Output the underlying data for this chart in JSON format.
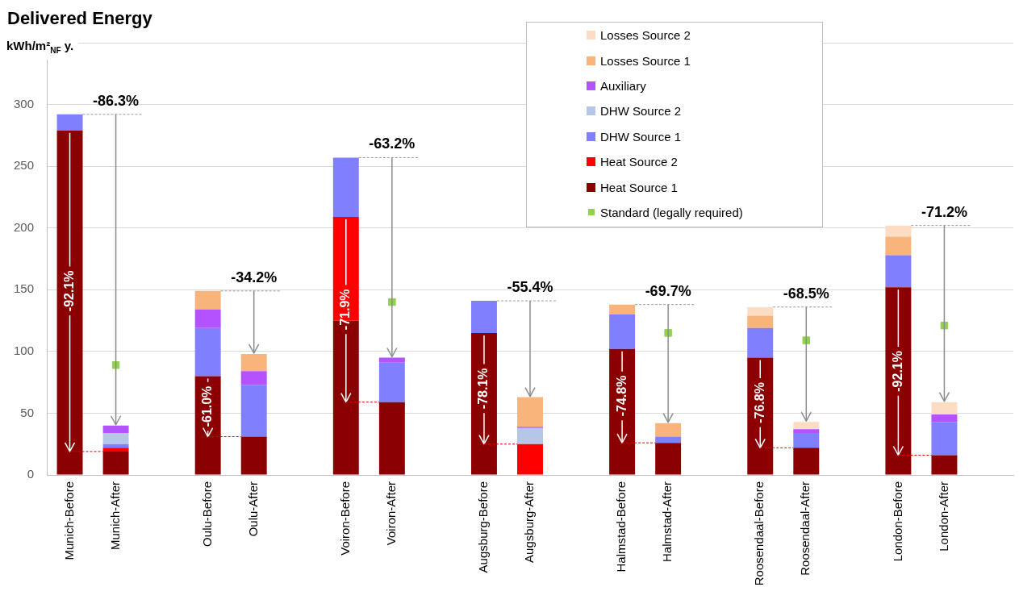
{
  "chart_data": {
    "type": "bar",
    "title": "Delivered Energy",
    "ylabel": "kWh/m²$_{NF}$ y.",
    "categories": [
      "Munich-Before",
      "Munich-After",
      null,
      "Oulu-Before",
      "Oulu-After",
      null,
      "Voiron-Before",
      "Voiron-After",
      null,
      "Augsburg-Before",
      "Augsburg-After",
      null,
      "Halmstad-Before",
      "Halmstad-After",
      null,
      "Roosendaal-Before",
      "Roosendaal-After",
      null,
      "London-Before",
      "London-After",
      null
    ],
    "series": [
      {
        "name": "Heat Source 1",
        "color": "#8b0000",
        "values": [
          279,
          19,
          null,
          80,
          31,
          null,
          125,
          59,
          null,
          115,
          null,
          null,
          102,
          26,
          null,
          95,
          22,
          null,
          152,
          16,
          null
        ]
      },
      {
        "name": "Heat Source 2",
        "color": "#ff0000",
        "values": [
          null,
          3,
          null,
          null,
          null,
          null,
          84,
          null,
          null,
          null,
          25,
          null,
          null,
          null,
          null,
          null,
          null,
          null,
          null,
          null,
          null
        ]
      },
      {
        "name": "DHW Source 1",
        "color": "#8080ff",
        "values": [
          13,
          3,
          null,
          39,
          42,
          null,
          48,
          32,
          null,
          26,
          null,
          null,
          28,
          5,
          null,
          24,
          12,
          null,
          26,
          27,
          null
        ]
      },
      {
        "name": "DHW Source 2",
        "color": "#b4c7e7",
        "values": [
          null,
          9,
          null,
          null,
          null,
          null,
          null,
          null,
          null,
          null,
          13,
          null,
          null,
          null,
          null,
          null,
          null,
          null,
          null,
          null,
          null
        ]
      },
      {
        "name": "Auxiliary",
        "color": "#b452ff",
        "values": [
          null,
          6,
          null,
          15,
          11,
          null,
          null,
          4,
          null,
          null,
          1,
          null,
          null,
          null,
          null,
          null,
          3,
          null,
          null,
          6,
          null
        ]
      },
      {
        "name": "Losses Source 1",
        "color": "#f9b47c",
        "values": [
          null,
          null,
          null,
          15,
          14,
          null,
          null,
          null,
          null,
          null,
          24,
          null,
          8,
          11,
          null,
          10,
          null,
          null,
          15,
          null,
          null
        ]
      },
      {
        "name": "Losses Source 2",
        "color": "#fcdcc2",
        "values": [
          null,
          null,
          null,
          null,
          null,
          null,
          null,
          null,
          null,
          null,
          null,
          null,
          null,
          null,
          null,
          7,
          6,
          null,
          9,
          10,
          null
        ]
      },
      {
        "name": "Standard (legally required)",
        "type": "scatter",
        "color": "#92d050",
        "marker": "square",
        "x": [
          "Munich-After",
          "Voiron-After",
          "Halmstad-After",
          "Roosendaal-After",
          "London-After"
        ],
        "values": [
          89,
          140,
          115,
          109,
          121
        ]
      }
    ],
    "stacked": true,
    "ylim": [
      0,
      350
    ],
    "yticks": [
      0,
      50,
      100,
      150,
      200,
      250,
      300,
      {
        "value": 350,
        "label": null
      }
    ],
    "grid": "y",
    "legend": "top right",
    "annotations": [
      {
        "text": "-86.3%",
        "x": "Munich-After",
        "y": 40
      },
      {
        "text": "-34.2%",
        "x": "Oulu-After",
        "y": 98
      },
      {
        "text": "-63.2%",
        "x": "Voiron-After",
        "y": 95
      },
      {
        "text": "-55.4%",
        "x": "Augsburg-After",
        "y": 63
      },
      {
        "text": "-69.7%",
        "x": "Halmstad-After",
        "y": 42
      },
      {
        "text": "-68.5%",
        "x": "Roosendaal-After",
        "y": 43
      },
      {
        "text": "-71.2%",
        "x": "London-After",
        "y": 59
      },
      {
        "text": "-92.1%",
        "x": "Munich-Before",
        "y": 279
      },
      {
        "text": "-61.0%",
        "x": "Oulu-Before",
        "y": 80
      },
      {
        "text": "-71.9%",
        "x": "Voiron-Before",
        "y": 209
      },
      {
        "text": "-78.1%",
        "x": "Augsburg-Before",
        "y": 115
      },
      {
        "text": "-74.8%",
        "x": "Halmstad-Before",
        "y": 102
      },
      {
        "text": "-76.8%",
        "x": "Roosendaal-Before",
        "y": 95
      },
      {
        "text": "-92.1%",
        "x": "London-Before",
        "y": 152
      }
    ]
  }
}
